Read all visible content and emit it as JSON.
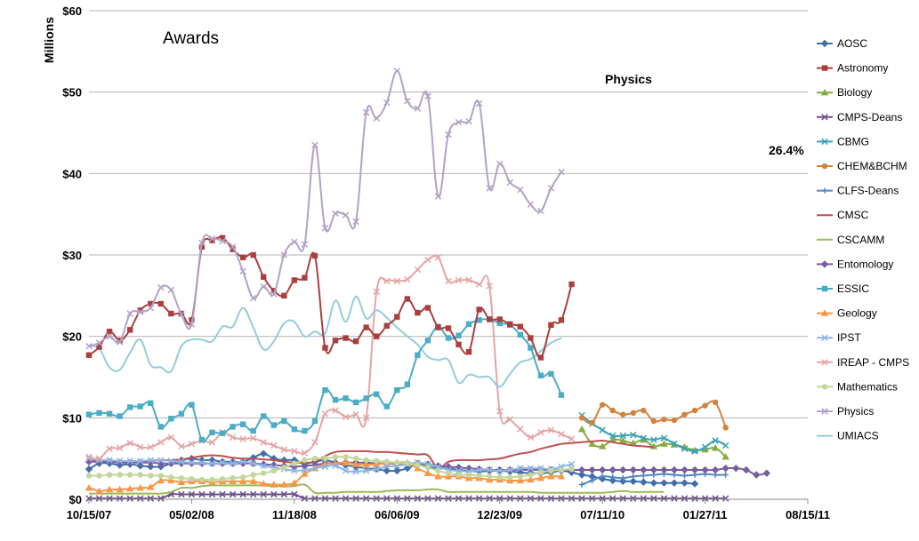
{
  "chart_data": {
    "type": "line",
    "title": "Awards",
    "ylabel": "Millions",
    "xlabel": "",
    "ylim": [
      0,
      60
    ],
    "y_ticks": [
      "$0",
      "$10",
      "$20",
      "$30",
      "$40",
      "$50",
      "$60"
    ],
    "x_ticks": [
      "10/15/07",
      "05/02/08",
      "11/18/08",
      "06/06/09",
      "12/23/09",
      "07/11/10",
      "01/27/11",
      "08/15/11"
    ],
    "grid": "horizontal",
    "legend": "right",
    "annotations": [
      {
        "text": "Physics",
        "x": 55,
        "y": 51.7
      },
      {
        "text": "26.4%",
        "x": 68,
        "y": 42.7
      }
    ],
    "series": [
      {
        "name": "AOSC",
        "color": "#3f6ea8",
        "marker": "diamond",
        "x_start": 0,
        "values": [
          3.7,
          4.4,
          4.4,
          4.2,
          4.3,
          4.1,
          4.0,
          4.0,
          4.4,
          4.8,
          5.0,
          4.8,
          4.8,
          4.6,
          4.6,
          4.6,
          5.1,
          5.6,
          5.0,
          4.8,
          4.8,
          4.4,
          4.6,
          4.8,
          4.5,
          4.2,
          4.0,
          3.8,
          3.7,
          3.5,
          3.5,
          3.8,
          4.3,
          4.0,
          3.8,
          3.8,
          3.6,
          3.5,
          3.4,
          3.5,
          3.5,
          3.4,
          3.3,
          3.2,
          3.2,
          3.3,
          3.5,
          3.3,
          3.0,
          2.8,
          2.5,
          2.3,
          2.2,
          2.2,
          2.1,
          2.0,
          2.0,
          2.0,
          2.0,
          1.9
        ]
      },
      {
        "name": "Astronomy",
        "color": "#a9403e",
        "marker": "square",
        "x_start": 0,
        "values": [
          17.7,
          18.7,
          20.6,
          19.5,
          20.8,
          23.2,
          24.0,
          24.0,
          22.8,
          22.8,
          22.0,
          31.0,
          31.8,
          32.1,
          30.7,
          29.7,
          30.0,
          27.3,
          25.6,
          25.0,
          26.9,
          27.2,
          29.9,
          18.6,
          19.5,
          19.8,
          19.4,
          21.1,
          20.0,
          21.3,
          22.4,
          24.6,
          22.9,
          23.5,
          21.1,
          21.0,
          19.0,
          18.1,
          23.3,
          22.1,
          22.1,
          21.5,
          21.2,
          19.8,
          17.4,
          21.4,
          22.0,
          26.4
        ]
      },
      {
        "name": "Biology",
        "color": "#86ab3f",
        "marker": "triangle",
        "x_start": 48,
        "values": [
          8.6,
          6.8,
          6.5,
          7.3,
          7.2,
          6.9,
          7.3,
          6.5,
          6.8,
          6.7,
          6.4,
          6.0,
          6.1,
          6.3,
          5.2
        ]
      },
      {
        "name": "CMPS-Deans",
        "color": "#6a4f8a",
        "marker": "x",
        "x_start": 0,
        "values": [
          0.1,
          0.1,
          0.1,
          0.1,
          0.1,
          0.1,
          0.1,
          0.1,
          0.6,
          0.6,
          0.6,
          0.6,
          0.6,
          0.6,
          0.6,
          0.6,
          0.6,
          0.6,
          0.6,
          0.6,
          0.6,
          0.1,
          0.1,
          0.1,
          0.1,
          0.1,
          0.1,
          0.1,
          0.1,
          0.1,
          0.1,
          0.1,
          0.1,
          0.1,
          0.1,
          0.1,
          0.1,
          0.1,
          0.1,
          0.1,
          0.1,
          0.1,
          0.1,
          0.1,
          0.1,
          0.1,
          0.1,
          0.1,
          0.1,
          0.1,
          0.1,
          0.1,
          0.1,
          0.1,
          0.1,
          0.1,
          0.1,
          0.1,
          0.1,
          0.1,
          0.1,
          0.1,
          0.1
        ]
      },
      {
        "name": "CBMG",
        "color": "#3aa3b7",
        "marker": "x",
        "x_start": 48,
        "values": [
          10.3,
          9.3,
          8.5,
          7.8,
          7.8,
          7.9,
          7.5,
          7.3,
          7.5,
          6.8,
          6.2,
          5.9,
          6.4,
          7.2,
          6.6
        ]
      },
      {
        "name": "CHEM&BCHM",
        "color": "#d2823a",
        "marker": "circle",
        "x_start": 48,
        "values": [
          10.0,
          9.4,
          11.6,
          10.9,
          10.4,
          10.6,
          10.9,
          9.6,
          9.8,
          9.7,
          10.4,
          10.9,
          11.5,
          11.9,
          8.8
        ]
      },
      {
        "name": "CLFS-Deans",
        "color": "#4f86c0",
        "marker": "plus",
        "x_start": 48,
        "values": [
          1.8,
          2.3,
          2.8,
          2.7,
          2.6,
          2.8,
          2.9,
          3.0,
          3.1,
          3.0,
          2.9,
          3.0,
          3.1,
          3.0,
          3.0
        ]
      },
      {
        "name": "CMSC",
        "color": "#c0504d",
        "marker": "none",
        "x_start": 0,
        "values": [
          4.8,
          4.7,
          4.7,
          4.6,
          4.6,
          4.6,
          4.7,
          4.8,
          4.8,
          4.9,
          5.1,
          5.3,
          5.4,
          5.3,
          5.1,
          5.0,
          5.0,
          4.9,
          4.8,
          4.6,
          4.5,
          4.5,
          4.6,
          5.3,
          5.8,
          5.9,
          5.9,
          5.9,
          5.8,
          5.8,
          5.7,
          5.6,
          5.5,
          5.4,
          3.8,
          4.6,
          4.8,
          4.8,
          4.8,
          4.9,
          5.0,
          5.3,
          5.6,
          5.8,
          6.2,
          6.5,
          6.8,
          6.9,
          7.0,
          7.1,
          7.2,
          7.0,
          6.8,
          6.6,
          6.5,
          6.4
        ]
      },
      {
        "name": "CSCAMM",
        "color": "#9bbb59",
        "marker": "none",
        "x_start": 0,
        "values": [
          0.7,
          0.7,
          0.7,
          0.7,
          0.7,
          0.7,
          0.7,
          0.7,
          0.9,
          1.4,
          1.4,
          1.6,
          1.7,
          1.7,
          1.7,
          1.7,
          1.7,
          1.7,
          1.6,
          1.6,
          1.6,
          1.8,
          0.8,
          0.8,
          0.8,
          0.9,
          0.9,
          0.9,
          0.9,
          1.0,
          1.1,
          1.1,
          1.1,
          1.2,
          1.2,
          0.9,
          0.9,
          0.9,
          0.9,
          0.9,
          0.9,
          0.9,
          0.9,
          0.9,
          0.8,
          0.8,
          0.8,
          0.8,
          0.8,
          0.8,
          0.8,
          0.9,
          1.0,
          0.9,
          0.9,
          0.9,
          0.9
        ]
      },
      {
        "name": "Entomology",
        "color": "#7a5ca1",
        "marker": "diamond",
        "x_start": 0,
        "values": [
          4.6,
          4.6,
          4.6,
          4.5,
          4.5,
          4.5,
          4.5,
          4.4,
          4.4,
          4.4,
          4.4,
          4.4,
          4.4,
          4.4,
          4.4,
          4.4,
          4.4,
          4.3,
          4.2,
          4.1,
          4.0,
          4.1,
          4.2,
          4.4,
          4.4,
          4.5,
          4.5,
          4.5,
          4.4,
          4.4,
          4.4,
          4.4,
          4.4,
          4.3,
          4.1,
          4.0,
          3.9,
          3.8,
          3.7,
          3.6,
          3.6,
          3.6,
          3.6,
          3.6,
          3.6,
          3.6,
          3.6,
          3.6,
          3.6,
          3.6,
          3.6,
          3.6,
          3.6,
          3.6,
          3.6,
          3.6,
          3.6,
          3.6,
          3.6,
          3.6,
          3.6,
          3.6,
          3.8,
          3.8,
          3.6,
          3.0,
          3.2
        ]
      },
      {
        "name": "ESSIC",
        "color": "#4bacc6",
        "marker": "square",
        "x_start": 0,
        "values": [
          10.4,
          10.6,
          10.5,
          10.2,
          11.3,
          11.4,
          11.8,
          8.9,
          9.9,
          10.5,
          11.6,
          7.3,
          8.2,
          8.1,
          8.9,
          9.2,
          8.4,
          10.2,
          9.1,
          9.6,
          8.6,
          8.4,
          9.6,
          13.4,
          12.2,
          12.4,
          11.9,
          12.4,
          12.9,
          11.4,
          13.4,
          14.1,
          17.7,
          19.5,
          21.2,
          19.8,
          20.1,
          21.5,
          22.0,
          22.1,
          21.6,
          21.4,
          20.2,
          18.6,
          15.2,
          15.4,
          12.8
        ]
      },
      {
        "name": "Geology",
        "color": "#f79646",
        "marker": "triangle",
        "x_start": 0,
        "values": [
          1.4,
          1.0,
          1.2,
          1.2,
          1.3,
          1.4,
          1.5,
          2.3,
          2.3,
          2.1,
          2.2,
          2.2,
          2.1,
          2.2,
          2.2,
          2.2,
          2.2,
          1.9,
          1.8,
          1.8,
          2.0,
          3.1,
          3.8,
          4.3,
          4.4,
          4.5,
          4.3,
          4.2,
          4.3,
          4.4,
          4.5,
          4.5,
          3.8,
          3.2,
          2.8,
          2.8,
          2.8,
          2.6,
          2.6,
          2.4,
          2.4,
          2.3,
          2.3,
          2.4,
          2.6,
          2.8,
          2.8
        ]
      },
      {
        "name": "IPST",
        "color": "#8eb4e3",
        "marker": "x",
        "x_start": 0,
        "values": [
          5.0,
          4.8,
          4.8,
          4.7,
          4.7,
          4.7,
          4.8,
          4.8,
          4.7,
          4.6,
          4.5,
          4.5,
          4.4,
          4.5,
          4.4,
          4.6,
          4.4,
          4.1,
          3.9,
          3.7,
          3.5,
          3.6,
          3.8,
          4.0,
          4.1,
          3.5,
          3.4,
          3.5,
          3.7,
          4.0,
          4.1,
          4.3,
          4.5,
          4.3,
          4.0,
          3.6,
          3.5,
          3.4,
          3.6,
          3.6,
          3.5,
          3.6,
          3.8,
          3.8,
          3.8,
          3.7,
          4.0,
          4.3
        ]
      },
      {
        "name": "IREAP - CMPS",
        "color": "#e6a5a4",
        "marker": "x",
        "x_start": 0,
        "values": [
          5.2,
          5.0,
          6.2,
          6.3,
          6.9,
          6.4,
          6.4,
          7.0,
          7.6,
          6.5,
          6.8,
          7.2,
          7.0,
          8.2,
          7.6,
          7.4,
          7.5,
          7.0,
          6.6,
          6.1,
          5.9,
          5.7,
          7.0,
          10.5,
          10.9,
          10.1,
          10.4,
          10.0,
          25.5,
          26.8,
          26.8,
          27.0,
          28.2,
          29.4,
          29.7,
          26.8,
          26.9,
          26.9,
          26.4,
          26.2,
          10.8,
          9.8,
          8.6,
          7.6,
          8.2,
          8.5,
          8.0,
          7.4
        ]
      },
      {
        "name": "Mathematics",
        "color": "#c3d69b",
        "marker": "circle",
        "x_start": 0,
        "values": [
          2.9,
          2.9,
          3.0,
          3.0,
          3.0,
          3.0,
          2.9,
          2.9,
          2.7,
          2.6,
          2.5,
          2.4,
          2.4,
          2.5,
          2.6,
          2.7,
          3.0,
          3.2,
          3.5,
          3.9,
          4.4,
          4.8,
          5.0,
          5.0,
          5.2,
          5.2,
          5.0,
          4.8,
          4.7,
          4.6,
          4.5,
          4.4,
          4.2,
          3.9,
          3.5,
          3.2,
          3.0,
          3.0,
          2.9,
          2.8,
          2.7,
          2.7,
          2.8,
          3.0,
          3.3,
          3.5,
          3.6,
          3.7
        ]
      },
      {
        "name": "Physics",
        "color": "#b3a2c7",
        "marker": "x",
        "x_start": 0,
        "values": [
          18.8,
          19.2,
          20.0,
          19.3,
          22.8,
          23.0,
          23.5,
          26.0,
          25.7,
          22.7,
          21.5,
          31.5,
          32.0,
          31.7,
          31.0,
          28.0,
          24.7,
          26.1,
          25.2,
          30.0,
          31.6,
          31.3,
          43.5,
          33.3,
          35.1,
          34.9,
          34.1,
          47.5,
          46.8,
          48.7,
          52.6,
          48.9,
          48.0,
          49.5,
          37.2,
          44.8,
          46.3,
          46.4,
          48.6,
          38.2,
          41.2,
          38.9,
          38.0,
          36.2,
          35.4,
          38.2,
          40.2
        ]
      },
      {
        "name": "UMIACS",
        "color": "#93cddd",
        "marker": "none",
        "x_start": 0,
        "values": [
          18.8,
          18.5,
          16.2,
          15.9,
          18.0,
          19.6,
          16.5,
          16.2,
          15.7,
          18.8,
          19.6,
          19.6,
          19.4,
          21.2,
          21.2,
          23.5,
          21.1,
          18.4,
          19.4,
          21.6,
          21.8,
          20.0,
          20.6,
          20.4,
          24.4,
          21.8,
          24.9,
          22.2,
          23.2,
          22.3,
          21.1,
          20.0,
          19.0,
          17.5,
          17.1,
          17.1,
          14.3,
          15.3,
          15.0,
          15.0,
          13.8,
          15.4,
          16.8,
          17.2,
          18.2,
          19.2,
          19.8
        ]
      }
    ],
    "legend_entries": [
      "AOSC",
      "Astronomy",
      "Biology",
      "CMPS-Deans",
      "CBMG",
      "CHEM&BCHM",
      "CLFS-Deans",
      "CMSC",
      "CSCAMM",
      "Entomology",
      "ESSIC",
      "Geology",
      "IPST",
      "IREAP - CMPS",
      "Mathematics",
      "Physics",
      "UMIACS"
    ]
  }
}
